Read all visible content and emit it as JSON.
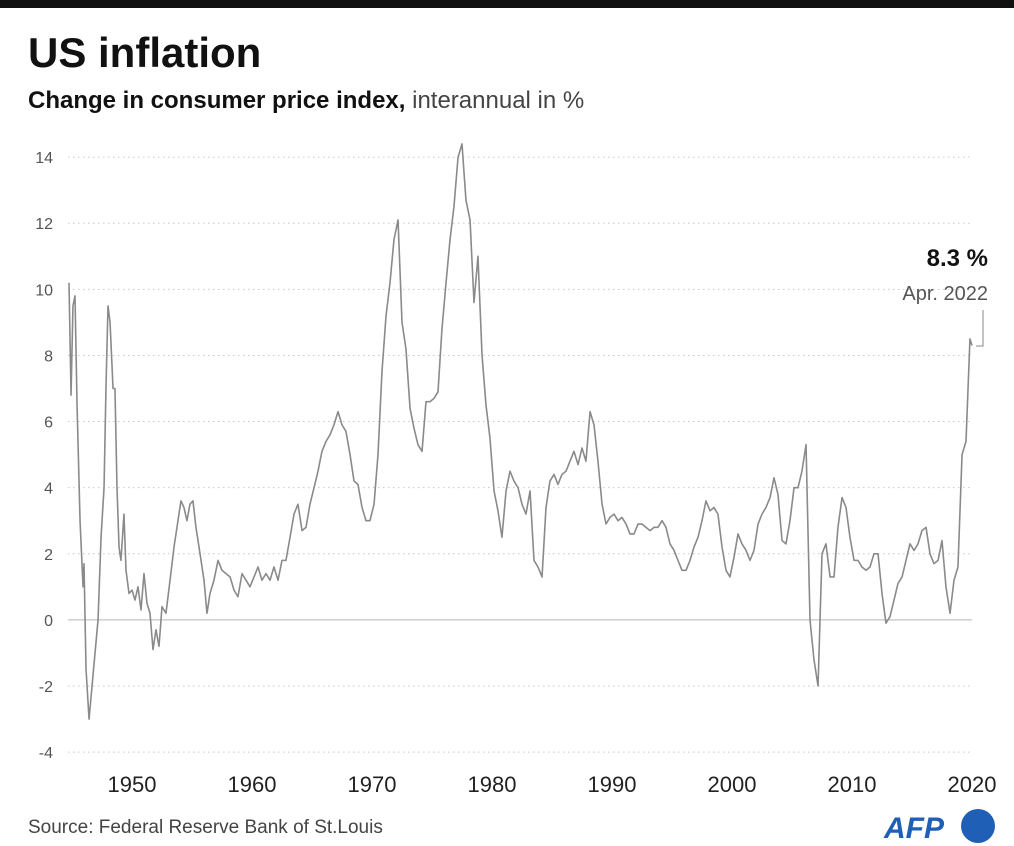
{
  "chart_data": {
    "type": "line",
    "title": "US inflation",
    "subtitle_bold": "Change in consumer price index,",
    "subtitle": "interannual in %",
    "source": "Source: Federal Reserve Bank of St.Louis",
    "logo": "AFP",
    "annotation": {
      "value": "8.3 %",
      "date": "Apr. 2022"
    },
    "color": "#8a8a8a",
    "grid": true,
    "xlim": [
      1944.75,
      2020.0
    ],
    "ylim": [
      -4.3,
      14.7
    ],
    "xticks": [
      1950,
      1960,
      1970,
      1980,
      1990,
      2000,
      2010,
      2020
    ],
    "yticks": [
      -4,
      -2,
      0,
      2,
      4,
      6,
      8,
      10,
      12,
      14
    ],
    "x": [
      1944.75,
      1944.92,
      1945.08,
      1945.25,
      1945.42,
      1945.67,
      1945.92,
      1946,
      1946.17,
      1946.42,
      1946.67,
      1946.92,
      1947.17,
      1947.42,
      1947.67,
      1947.83,
      1948,
      1948.17,
      1948.42,
      1948.58,
      1948.75,
      1948.92,
      1949.08,
      1949.33,
      1949.5,
      1949.75,
      1950,
      1950.25,
      1950.5,
      1950.75,
      1951,
      1951.25,
      1951.5,
      1951.75,
      1952,
      1952.25,
      1952.5,
      1952.83,
      1953.17,
      1953.5,
      1953.83,
      1954.08,
      1954.33,
      1954.58,
      1954.83,
      1955.08,
      1955.33,
      1955.67,
      1956,
      1956.25,
      1956.5,
      1956.83,
      1957.17,
      1957.5,
      1957.83,
      1958.17,
      1958.5,
      1958.83,
      1959.17,
      1959.5,
      1959.83,
      1960.17,
      1960.5,
      1960.83,
      1961.17,
      1961.5,
      1961.83,
      1962.17,
      1962.5,
      1962.83,
      1963.17,
      1963.5,
      1963.83,
      1964.17,
      1964.5,
      1964.83,
      1965.17,
      1965.5,
      1965.83,
      1966.17,
      1966.5,
      1966.83,
      1967.17,
      1967.5,
      1967.83,
      1968.17,
      1968.5,
      1968.83,
      1969.17,
      1969.5,
      1969.83,
      1970.17,
      1970.5,
      1970.83,
      1971.17,
      1971.5,
      1971.83,
      1972.17,
      1972.5,
      1972.83,
      1973.17,
      1973.5,
      1973.83,
      1974.17,
      1974.5,
      1974.83,
      1975.17,
      1975.5,
      1975.83,
      1976.17,
      1976.5,
      1976.83,
      1977.17,
      1977.5,
      1977.83,
      1978.17,
      1978.5,
      1978.83,
      1979.17,
      1979.5,
      1979.83,
      1980.17,
      1980.5,
      1980.83,
      1981.17,
      1981.5,
      1981.83,
      1982.17,
      1982.5,
      1982.83,
      1983.17,
      1983.5,
      1983.83,
      1984.17,
      1984.5,
      1984.83,
      1985.17,
      1985.5,
      1985.83,
      1986.17,
      1986.5,
      1986.83,
      1987.17,
      1987.5,
      1987.83,
      1988.17,
      1988.5,
      1988.83,
      1989.17,
      1989.5,
      1989.83,
      1990.17,
      1990.5,
      1990.83,
      1991.17,
      1991.5,
      1991.83,
      1992.17,
      1992.5,
      1992.83,
      1993.17,
      1993.5,
      1993.83,
      1994.17,
      1994.5,
      1994.83,
      1995.17,
      1995.5,
      1995.83,
      1996.17,
      1996.5,
      1996.83,
      1997.17,
      1997.5,
      1997.83,
      1998.17,
      1998.5,
      1998.83,
      1999.17,
      1999.5,
      1999.83,
      2000.17,
      2000.5,
      2000.83,
      2001.17,
      2001.5,
      2001.83,
      2002.17,
      2002.5,
      2002.83,
      2003.17,
      2003.5,
      2003.83,
      2004.17,
      2004.5,
      2004.83,
      2005.17,
      2005.5,
      2005.83,
      2006.17,
      2006.5,
      2006.83,
      2007.17,
      2007.5,
      2007.83,
      2008.17,
      2008.5,
      2008.83,
      2009.17,
      2009.5,
      2009.83,
      2010.17,
      2010.5,
      2010.83,
      2011.17,
      2011.5,
      2011.83,
      2012.17,
      2012.5,
      2012.83,
      2013.17,
      2013.5,
      2013.83,
      2014.17,
      2014.5,
      2014.83,
      2015.17,
      2015.5,
      2015.83,
      2016.17,
      2016.5,
      2016.83,
      2017.17,
      2017.5,
      2017.83,
      2018.17,
      2018.5,
      2018.83,
      2019.17,
      2019.5,
      2019.83,
      2020
    ],
    "values": [
      10.2,
      6.8,
      9.5,
      9.8,
      6.5,
      3.0,
      1.0,
      1.7,
      -1.5,
      -3.0,
      -2.0,
      -1.0,
      0,
      2.5,
      4.0,
      7.0,
      9.5,
      9.0,
      7.0,
      7.0,
      4.0,
      2.2,
      1.8,
      3.2,
      1.5,
      0.8,
      0.9,
      0.6,
      1.0,
      0.3,
      1.4,
      0.5,
      0.2,
      -0.9,
      -0.3,
      -0.8,
      0.4,
      0.2,
      1.2,
      2.2,
      3.0,
      3.6,
      3.4,
      3.0,
      3.5,
      3.6,
      2.8,
      2.0,
      1.2,
      0.2,
      0.8,
      1.2,
      1.8,
      1.5,
      1.4,
      1.3,
      0.9,
      0.7,
      1.4,
      1.2,
      1.0,
      1.3,
      1.6,
      1.2,
      1.4,
      1.2,
      1.6,
      1.2,
      1.8,
      1.8,
      2.5,
      3.2,
      3.5,
      2.7,
      2.8,
      3.5,
      4.0,
      4.5,
      5.1,
      5.4,
      5.6,
      5.9,
      6.3,
      5.9,
      5.7,
      5.0,
      4.2,
      4.1,
      3.4,
      3.0,
      3.0,
      3.5,
      5.0,
      7.5,
      9.2,
      10.2,
      11.5,
      12.1,
      9.0,
      8.2,
      6.4,
      5.8,
      5.3,
      5.1,
      6.6,
      6.6,
      6.7,
      6.9,
      8.8,
      10.2,
      11.5,
      12.5,
      14.0,
      14.4,
      12.7,
      12.1,
      9.6,
      11.0,
      8.0,
      6.5,
      5.5,
      3.9,
      3.3,
      2.5,
      3.9,
      4.5,
      4.2,
      4.0,
      3.5,
      3.2,
      3.9,
      1.8,
      1.6,
      1.3,
      3.4,
      4.2,
      4.4,
      4.1,
      4.4,
      4.5,
      4.8,
      5.1,
      4.7,
      5.2,
      4.8,
      6.3,
      5.9,
      4.8,
      3.5,
      2.9,
      3.1,
      3.2,
      3.0,
      3.1,
      2.9,
      2.6,
      2.6,
      2.9,
      2.9,
      2.8,
      2.7,
      2.8,
      2.8,
      3.0,
      2.8,
      2.3,
      2.1,
      1.8,
      1.5,
      1.5,
      1.8,
      2.2,
      2.5,
      3.0,
      3.6,
      3.3,
      3.4,
      3.2,
      2.2,
      1.5,
      1.3,
      1.9,
      2.6,
      2.3,
      2.1,
      1.8,
      2.1,
      2.9,
      3.2,
      3.4,
      3.7,
      4.3,
      3.8,
      2.4,
      2.3,
      3.0,
      4.0,
      4.0,
      4.5,
      5.3,
      0.0,
      -1.2,
      -2.0,
      2.0,
      2.3,
      1.3,
      1.3,
      2.8,
      3.7,
      3.4,
      2.5,
      1.8,
      1.8,
      1.6,
      1.5,
      1.6,
      2.0,
      2.0,
      0.8,
      -0.1,
      0.1,
      0.6,
      1.1,
      1.3,
      1.8,
      2.3,
      2.1,
      2.3,
      2.7,
      2.8,
      2.0,
      1.7,
      1.8,
      2.4,
      1.0,
      0.2,
      1.2,
      1.6,
      5.0,
      5.4,
      8.5,
      8.3
    ]
  }
}
